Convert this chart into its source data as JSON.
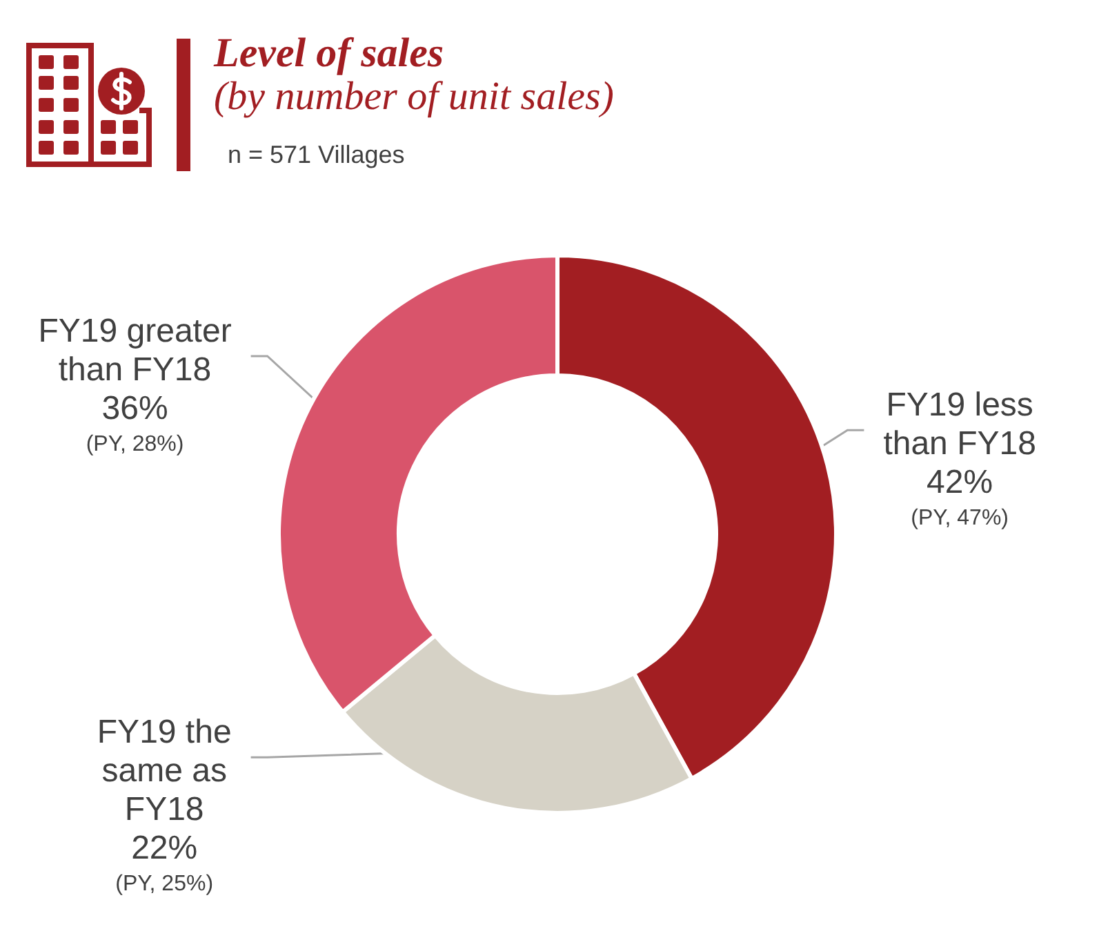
{
  "chart_data": {
    "type": "donut",
    "title": "Level of sales",
    "subtitle": "(by number of unit sales)",
    "categories": [
      "FY19 less than FY18",
      "FY19 the same as FY18",
      "FY19 greater than FY18"
    ],
    "values": [
      42,
      22,
      36
    ],
    "colors": [
      "#a21e22",
      "#d6d2c6",
      "#d9546b"
    ],
    "value_labels": [
      "42%",
      "22%",
      "36%"
    ],
    "annotations": [
      "n = 571 Villages",
      {
        "text": "(PY, 47%)",
        "x": "FY19 less than FY18"
      },
      {
        "text": "(PY, 25%)",
        "x": "FY19 the same as FY18"
      },
      {
        "text": "(PY, 28%)",
        "x": "FY19 greater than FY18"
      }
    ]
  }
}
